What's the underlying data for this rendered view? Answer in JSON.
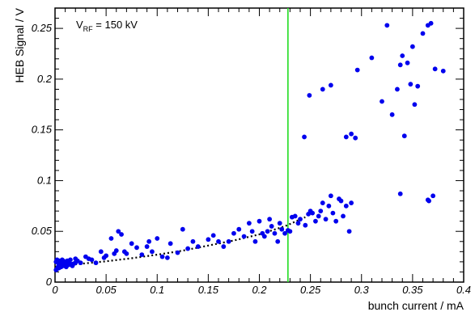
{
  "chart_data": {
    "type": "scatter",
    "xlabel": "bunch current / mA",
    "ylabel": "HEB Signal / V",
    "xlim": [
      0,
      0.4
    ],
    "ylim": [
      0,
      0.27
    ],
    "x_tick_values": [
      0,
      0.05,
      0.1,
      0.15,
      0.2,
      0.25,
      0.3,
      0.35,
      0.4
    ],
    "x_tick_labels": [
      "0",
      "0.05",
      "0.1",
      "0.15",
      "0.2",
      "0.25",
      "0.3",
      "0.35",
      "0.4"
    ],
    "y_tick_values": [
      0,
      0.05,
      0.1,
      0.15,
      0.2,
      0.25
    ],
    "y_tick_labels": [
      "0",
      "0.05",
      "0.1",
      "0.15",
      "0.2",
      "0.25"
    ],
    "annotation": {
      "prefix": "V",
      "subscript": "RF",
      "suffix": " = 150 kV"
    },
    "grid": false,
    "colors": {
      "points": "#0000ee",
      "fit": "#000000",
      "threshold": "#22dd22"
    },
    "threshold_line": {
      "x": 0.228
    },
    "fit_curve": {
      "style": "dotted",
      "x": [
        0.0,
        0.025,
        0.05,
        0.075,
        0.1,
        0.125,
        0.15,
        0.175,
        0.2,
        0.225,
        0.245
      ],
      "y": [
        0.015,
        0.018,
        0.0205,
        0.0235,
        0.027,
        0.031,
        0.036,
        0.041,
        0.047,
        0.055,
        0.064
      ]
    },
    "points": {
      "x": [
        0.001,
        0.002,
        0.003,
        0.004,
        0.005,
        0.006,
        0.007,
        0.008,
        0.009,
        0.011,
        0.012,
        0.013,
        0.014,
        0.015,
        0.016,
        0.018,
        0.02,
        0.003,
        0.005,
        0.007,
        0.009,
        0.013,
        0.002,
        0.004,
        0.006,
        0.001,
        0.003,
        0.011,
        0.017,
        0.004,
        0.006,
        0.015,
        0.02,
        0.022,
        0.025,
        0.03,
        0.033,
        0.036,
        0.04,
        0.045,
        0.048,
        0.05,
        0.055,
        0.058,
        0.06,
        0.062,
        0.065,
        0.068,
        0.07,
        0.075,
        0.08,
        0.085,
        0.09,
        0.092,
        0.095,
        0.1,
        0.105,
        0.11,
        0.113,
        0.12,
        0.125,
        0.13,
        0.135,
        0.14,
        0.15,
        0.155,
        0.16,
        0.165,
        0.17,
        0.175,
        0.18,
        0.185,
        0.19,
        0.193,
        0.196,
        0.2,
        0.203,
        0.205,
        0.208,
        0.21,
        0.212,
        0.215,
        0.218,
        0.22,
        0.222,
        0.225,
        0.228,
        0.23,
        0.232,
        0.235,
        0.238,
        0.24,
        0.245,
        0.248,
        0.25,
        0.252,
        0.255,
        0.258,
        0.26,
        0.262,
        0.265,
        0.268,
        0.27,
        0.272,
        0.275,
        0.278,
        0.28,
        0.282,
        0.285,
        0.288,
        0.29,
        0.244,
        0.249,
        0.262,
        0.27,
        0.285,
        0.29,
        0.294,
        0.296,
        0.31,
        0.32,
        0.325,
        0.33,
        0.335,
        0.338,
        0.34,
        0.342,
        0.345,
        0.348,
        0.35,
        0.352,
        0.355,
        0.36,
        0.365,
        0.366,
        0.368,
        0.372,
        0.38,
        0.338,
        0.365,
        0.37
      ],
      "y": [
        0.02,
        0.022,
        0.019,
        0.021,
        0.02,
        0.018,
        0.022,
        0.021,
        0.02,
        0.019,
        0.021,
        0.018,
        0.019,
        0.018,
        0.017,
        0.018,
        0.019,
        0.015,
        0.016,
        0.017,
        0.016,
        0.017,
        0.013,
        0.014,
        0.015,
        0.012,
        0.021,
        0.015,
        0.016,
        0.017,
        0.018,
        0.022,
        0.023,
        0.021,
        0.019,
        0.025,
        0.023,
        0.022,
        0.019,
        0.03,
        0.024,
        0.026,
        0.043,
        0.028,
        0.031,
        0.05,
        0.047,
        0.03,
        0.028,
        0.038,
        0.034,
        0.027,
        0.035,
        0.04,
        0.03,
        0.043,
        0.025,
        0.024,
        0.038,
        0.029,
        0.052,
        0.033,
        0.04,
        0.035,
        0.042,
        0.046,
        0.04,
        0.035,
        0.04,
        0.048,
        0.052,
        0.045,
        0.058,
        0.05,
        0.04,
        0.06,
        0.048,
        0.045,
        0.05,
        0.062,
        0.055,
        0.048,
        0.04,
        0.058,
        0.052,
        0.048,
        0.051,
        0.05,
        0.064,
        0.065,
        0.058,
        0.062,
        0.056,
        0.067,
        0.07,
        0.068,
        0.06,
        0.065,
        0.07,
        0.078,
        0.062,
        0.075,
        0.085,
        0.068,
        0.06,
        0.082,
        0.08,
        0.065,
        0.075,
        0.05,
        0.078,
        0.143,
        0.184,
        0.19,
        0.194,
        0.143,
        0.146,
        0.142,
        0.209,
        0.221,
        0.178,
        0.253,
        0.165,
        0.19,
        0.214,
        0.223,
        0.144,
        0.216,
        0.195,
        0.232,
        0.175,
        0.193,
        0.245,
        0.253,
        0.08,
        0.255,
        0.21,
        0.208,
        0.087,
        0.081,
        0.085
      ]
    }
  }
}
